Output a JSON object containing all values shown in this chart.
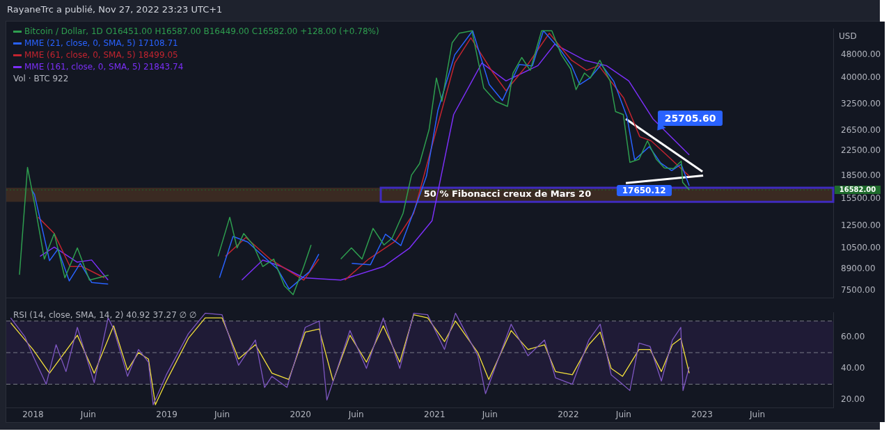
{
  "chart_data": [
    {
      "type": "line",
      "title": "RayaneTrc a publié, Nov 27, 2022 23:23 UTC+1",
      "ylabel": "USD",
      "log": true,
      "marker": "none",
      "grid": false,
      "legend": "top left",
      "tick_labels": "y",
      "xlim": [
        "2017-10-20",
        "2023-12-25"
      ],
      "ylim": [
        7070,
        59000
      ],
      "yticks": [
        {
          "value": 7500,
          "label": "7500.00"
        },
        {
          "value": 8900,
          "label": "8900.00"
        },
        {
          "value": 10500,
          "label": "10500.00"
        },
        {
          "value": 12500,
          "label": "12500.00"
        },
        {
          "value": 15500,
          "label": "15500.00"
        },
        {
          "value": 18500,
          "label": "18500.00"
        },
        {
          "value": 22500,
          "label": "22500.00"
        },
        {
          "value": 26500,
          "label": "26500.00"
        },
        {
          "value": 32500,
          "label": "32500.00"
        },
        {
          "value": 40000,
          "label": "40000.00"
        },
        {
          "value": 48000,
          "label": "48000.00"
        }
      ],
      "series": [
        {
          "name": "Bitcoin / Dollar, 1D",
          "color": "#2e9e4f",
          "x": [
            "2017-11-25",
            "2017-12-17",
            "2018-01-06",
            "2018-02-01",
            "2018-02-28",
            "2018-03-29",
            "2018-05-02",
            "2018-06-04",
            "2018-07-26",
            "2018-08-15",
            "2019-04-01",
            "2019-05-21",
            "2019-06-22",
            "2019-07-12",
            "2019-07-30",
            "2019-08-25",
            "2019-09-20",
            "2019-10-20",
            "2019-11-18",
            "2019-12-12",
            "2020-01-10",
            "2020-01-30",
            "2020-03-12",
            "2020-04-20",
            "2020-05-19",
            "2020-06-17",
            "2020-07-17",
            "2020-08-16",
            "2020-09-07",
            "2020-10-07",
            "2020-10-30",
            "2020-11-21",
            "2020-12-17",
            "2021-01-06",
            "2021-01-21",
            "2021-02-18",
            "2021-03-09",
            "2021-04-13",
            "2021-05-15",
            "2021-06-17",
            "2021-07-19",
            "2021-08-03",
            "2021-08-27",
            "2021-09-19",
            "2021-10-20",
            "2021-11-17",
            "2021-12-13",
            "2022-01-07",
            "2022-01-22",
            "2022-02-14",
            "2022-03-02",
            "2022-03-28",
            "2022-04-25",
            "2022-05-10",
            "2022-05-31",
            "2022-06-18",
            "2022-07-13",
            "2022-08-05",
            "2022-08-29",
            "2022-09-20",
            "2022-10-15",
            "2022-11-05",
            "2022-11-09",
            "2022-11-27"
          ],
          "values": [
            8500,
            19800,
            14700,
            9620,
            11760,
            8300,
            10500,
            8150,
            8470,
            null,
            null,
            9830,
            13370,
            10500,
            11760,
            10750,
            9070,
            9620,
            7790,
            7270,
            9070,
            10750,
            null,
            9620,
            10500,
            9620,
            12250,
            10750,
            11340,
            13790,
            18620,
            20400,
            26660,
            40000,
            33300,
            52800,
            56900,
            58000,
            37000,
            33300,
            32000,
            41600,
            47000,
            42500,
            58000,
            58000,
            48000,
            43000,
            36500,
            41600,
            40000,
            46000,
            39100,
            30700,
            30000,
            20600,
            21100,
            24400,
            21100,
            19700,
            19600,
            20800,
            17600,
            16582
          ]
        },
        {
          "name": "MME (21, close, 0, SMA, 5) 17108.71",
          "color": "#2962ff",
          "x": [
            "2017-12-28",
            "2018-01-05",
            "2018-02-15",
            "2018-03-10",
            "2018-04-10",
            "2018-05-10",
            "2018-06-10",
            "2018-07-25",
            "2018-08-10",
            "2019-05-01",
            "2019-05-25",
            "2019-07-01",
            "2019-08-10",
            "2019-09-15",
            "2019-10-30",
            "2019-12-01",
            "2020-01-25",
            "2020-02-20",
            "2020-03-10",
            "2020-05-20",
            "2020-07-10",
            "2020-08-20",
            "2020-10-01",
            "2020-11-10",
            "2020-12-10",
            "2021-01-10",
            "2021-02-25",
            "2021-04-15",
            "2021-05-30",
            "2021-07-05",
            "2021-08-20",
            "2021-09-25",
            "2021-10-25",
            "2021-12-10",
            "2022-01-10",
            "2022-02-01",
            "2022-03-01",
            "2022-04-01",
            "2022-05-05",
            "2022-06-10",
            "2022-07-01",
            "2022-08-10",
            "2022-09-10",
            "2022-10-10",
            "2022-11-05",
            "2022-11-27"
          ],
          "values": [
            16600,
            16000,
            9500,
            10400,
            8100,
            9300,
            8000,
            7900,
            null,
            null,
            8300,
            11500,
            11000,
            10000,
            8900,
            7600,
            8700,
            10000,
            null,
            9300,
            9200,
            11700,
            10700,
            14500,
            18500,
            31000,
            48000,
            58000,
            38000,
            33500,
            44500,
            44000,
            58000,
            50000,
            44000,
            38000,
            40000,
            44500,
            39000,
            29500,
            21000,
            23300,
            20500,
            19300,
            20300,
            17108.71
          ]
        },
        {
          "name": "MME (61, close, 0, SMA, 5) 18499.05",
          "color": "#c2242f",
          "x": [
            "2018-01-15",
            "2018-02-28",
            "2018-04-12",
            "2018-05-15",
            "2018-07-15",
            "2018-08-10",
            "2019-05-01",
            "2019-06-10",
            "2019-08-05",
            "2019-10-10",
            "2020-01-10",
            "2020-02-20",
            "2020-03-10",
            "2020-05-01",
            "2020-07-05",
            "2020-09-15",
            "2020-11-05",
            "2020-12-30",
            "2021-02-25",
            "2021-04-10",
            "2021-06-10",
            "2021-07-15",
            "2021-09-15",
            "2021-11-10",
            "2022-01-10",
            "2022-02-20",
            "2022-03-25",
            "2022-06-01",
            "2022-07-15",
            "2022-08-15",
            "2022-09-25",
            "2022-11-05",
            "2022-11-27"
          ],
          "values": [
            13370,
            11760,
            9070,
            9070,
            8300,
            null,
            null,
            9830,
            11400,
            9620,
            8150,
            9620,
            null,
            8150,
            9620,
            11050,
            13790,
            24700,
            45000,
            54900,
            41600,
            36200,
            45000,
            56900,
            46000,
            42500,
            44100,
            34200,
            25200,
            24400,
            21900,
            19600,
            18499.05
          ]
        },
        {
          "name": "MME (161, close, 0, SMA, 5) 21843.74",
          "color": "#7b2ff7",
          "x": [
            "2018-01-20",
            "2018-02-28",
            "2018-05-01",
            "2018-06-10",
            "2018-07-25",
            "2018-08-20",
            "2019-06-01",
            "2019-07-25",
            "2019-09-20",
            "2019-11-10",
            "2020-01-10",
            "2020-04-20",
            "2020-08-15",
            "2020-10-25",
            "2020-12-25",
            "2021-02-22",
            "2021-05-10",
            "2021-07-15",
            "2021-10-10",
            "2021-11-25",
            "2022-02-15",
            "2022-04-15",
            "2022-06-15",
            "2022-08-20",
            "2022-10-15",
            "2022-11-27"
          ],
          "values": [
            9830,
            10570,
            9390,
            9550,
            8150,
            null,
            null,
            8150,
            9540,
            9070,
            8300,
            8150,
            9070,
            10500,
            13000,
            30000,
            45000,
            39100,
            44100,
            52200,
            46000,
            44100,
            39100,
            29000,
            24700,
            21843.74
          ]
        },
        {
          "type": "line",
          "color": "#ffffff",
          "x": [
            "2022-06-07",
            "2023-01-02"
          ],
          "values": [
            29000,
            19150
          ]
        },
        {
          "type": "line",
          "color": "#ffffff",
          "x": [
            "2022-06-07",
            "2023-01-04"
          ],
          "values": [
            17500,
            18560
          ]
        }
      ],
      "ref_lines": [
        {
          "axis": "y",
          "value": 16582,
          "label": "16582.00",
          "color": "#1e6b2c",
          "line_style": "dotted"
        }
      ],
      "bands": [
        {
          "axis": "y",
          "from": 15100,
          "to": 16860,
          "label": "50 % Fibonacci creux de Mars 20",
          "color": "#3a2a22"
        }
      ],
      "annotations": [
        "O16451.00 H16587.00 B16449.00 C16582.00 +128.00 (+0.78%)",
        "Vol · BTC 922",
        {
          "text": "25705.60",
          "x": "2022-08-14",
          "y": 25705.6
        },
        {
          "text": "17650.12",
          "x": "2022-07-20",
          "y": 17650.12
        }
      ]
    },
    {
      "type": "line",
      "marker": "none",
      "grid": false,
      "legend": false,
      "xlim": [
        "2017-10-20",
        "2023-12-25"
      ],
      "ylim": [
        15,
        75.5
      ],
      "xticks": [
        {
          "value": "2018-01-01",
          "label": "2018"
        },
        {
          "value": "2018-06-01",
          "label": "Juin"
        },
        {
          "value": "2019-01-01",
          "label": "2019"
        },
        {
          "value": "2019-06-01",
          "label": "Juin"
        },
        {
          "value": "2020-01-01",
          "label": "2020"
        },
        {
          "value": "2020-06-01",
          "label": "Juin"
        },
        {
          "value": "2021-01-01",
          "label": "2021"
        },
        {
          "value": "2021-06-01",
          "label": "Juin"
        },
        {
          "value": "2022-01-01",
          "label": "2022"
        },
        {
          "value": "2022-06-01",
          "label": "Juin"
        },
        {
          "value": "2023-01-01",
          "label": "2023"
        },
        {
          "value": "2023-06-01",
          "label": "Juin"
        }
      ],
      "yticks": [
        {
          "value": 20,
          "label": "20.00"
        },
        {
          "value": 40,
          "label": "40.00"
        },
        {
          "value": 60,
          "label": "60.00"
        }
      ],
      "series": [
        {
          "color": "#7e57c2",
          "x": [
            "2017-11-01",
            "2017-12-10",
            "2018-01-01",
            "2018-02-06",
            "2018-03-05",
            "2018-04-01",
            "2018-05-02",
            "2018-06-17",
            "2018-07-25",
            "2018-08-09",
            "2018-09-16",
            "2018-10-16",
            "2018-11-12",
            "2018-11-25",
            "2018-12-31",
            "2019-03-01",
            "2019-04-16",
            "2019-06-01",
            "2019-07-16",
            "2019-08-31",
            "2019-09-25",
            "2019-10-15",
            "2019-11-25",
            "2020-01-14",
            "2020-02-21",
            "2020-03-13",
            "2020-05-15",
            "2020-06-29",
            "2020-08-14",
            "2020-09-28",
            "2020-11-05",
            "2020-12-13",
            "2021-01-28",
            "2021-02-27",
            "2021-04-29",
            "2021-05-20",
            "2021-07-29",
            "2021-09-13",
            "2021-10-28",
            "2021-11-27",
            "2022-01-12",
            "2022-02-26",
            "2022-03-29",
            "2022-04-28",
            "2022-05-29",
            "2022-06-18",
            "2022-07-13",
            "2022-08-12",
            "2022-09-12",
            "2022-10-12",
            "2022-11-04",
            "2022-11-10",
            "2022-11-27"
          ],
          "values": [
            72,
            60,
            48,
            30,
            55,
            38,
            66,
            31,
            72,
            65,
            35,
            52,
            44,
            17,
            36,
            62,
            75,
            74,
            42,
            58,
            28,
            35,
            28,
            66,
            70,
            20,
            64,
            40,
            72,
            40,
            75,
            74,
            52,
            75,
            48,
            24,
            68,
            48,
            58,
            34,
            30,
            58,
            68,
            36,
            30,
            26,
            56,
            54,
            32,
            58,
            66,
            26,
            41
          ]
        },
        {
          "color": "#f5e23b",
          "x": [
            "2017-11-01",
            "2018-01-01",
            "2018-02-15",
            "2018-05-02",
            "2018-06-17",
            "2018-08-09",
            "2018-09-16",
            "2018-10-16",
            "2018-11-12",
            "2018-12-01",
            "2018-12-31",
            "2019-03-01",
            "2019-04-16",
            "2019-06-01",
            "2019-07-16",
            "2019-08-31",
            "2019-10-15",
            "2019-11-30",
            "2020-01-14",
            "2020-02-21",
            "2020-03-30",
            "2020-05-15",
            "2020-06-29",
            "2020-08-14",
            "2020-09-28",
            "2020-11-05",
            "2020-12-13",
            "2021-01-28",
            "2021-02-27",
            "2021-04-29",
            "2021-05-29",
            "2021-07-29",
            "2021-09-13",
            "2021-10-28",
            "2021-11-27",
            "2022-01-12",
            "2022-02-26",
            "2022-03-29",
            "2022-04-28",
            "2022-05-29",
            "2022-07-13",
            "2022-08-12",
            "2022-09-12",
            "2022-10-12",
            "2022-11-04",
            "2022-11-27"
          ],
          "values": [
            68.9,
            52,
            37,
            61,
            37,
            67,
            39,
            50,
            46,
            17,
            32,
            59,
            72,
            72,
            46,
            55,
            37,
            33,
            63,
            65,
            32,
            61,
            44,
            67,
            44,
            74,
            72,
            57,
            70,
            50,
            33,
            64,
            52,
            55,
            38,
            36,
            55,
            63,
            40,
            35,
            52,
            52,
            38,
            55,
            59,
            37
          ]
        }
      ],
      "ref_lines": [
        {
          "axis": "y",
          "value": 70,
          "color": "#787b86",
          "line_style": "dashed"
        },
        {
          "axis": "y",
          "value": 50,
          "color": "#787b86",
          "line_style": "dashed"
        },
        {
          "axis": "y",
          "value": 30,
          "color": "#787b86",
          "line_style": "dashed"
        }
      ],
      "bands": [
        {
          "axis": "y",
          "from": 30,
          "to": 70,
          "color": "#1f1b36"
        }
      ],
      "annotations": [
        "RSI (14, close, SMA, 14, 2) 40.92 37.27 ∅ ∅"
      ]
    }
  ]
}
